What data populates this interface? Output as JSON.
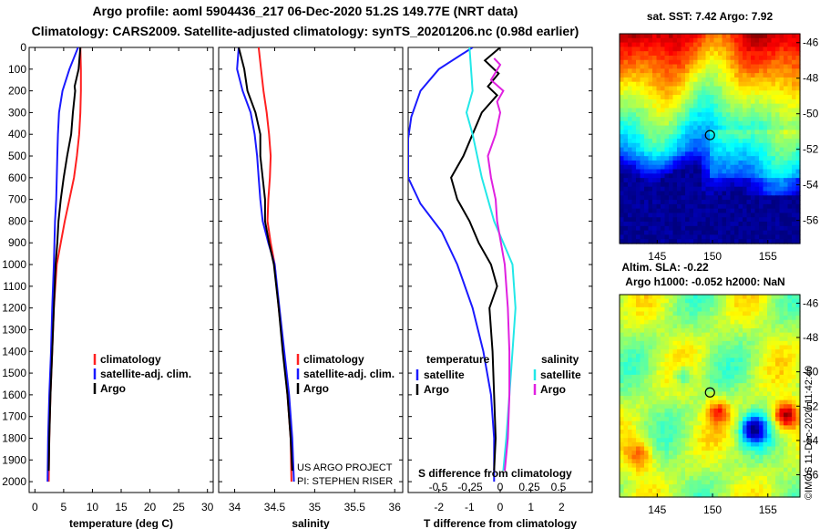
{
  "header": {
    "line1": "Argo profile: aoml 5904436_217 06-Dec-2020 51.2S 149.77E (NRT data)",
    "line2": "Climatology: CARS2009. Satellite-adjusted climatology: synTS_20201206.nc (0.98d earlier)"
  },
  "colors": {
    "climatology": "#ff2020",
    "satellite": "#1a1aff",
    "argo": "#000000",
    "sat_salinity": "#22e8e8",
    "argo_salinity": "#e020e0"
  },
  "chart_data": [
    {
      "type": "line",
      "id": "temperature",
      "xlabel": "temperature (deg C)",
      "xlim": [
        -1,
        31
      ],
      "xticks": [
        0,
        5,
        10,
        15,
        20,
        25,
        30
      ],
      "ylim": [
        2050,
        0
      ],
      "yticks": [
        0,
        100,
        200,
        300,
        400,
        500,
        600,
        700,
        800,
        900,
        1000,
        1100,
        1200,
        1300,
        1400,
        1500,
        1600,
        1700,
        1800,
        1900,
        2000
      ],
      "legend": [
        "climatology",
        "satellite-adj. clim.",
        "Argo"
      ],
      "series": [
        {
          "name": "climatology",
          "color": "#ff2020",
          "points": [
            [
              7.9,
              0
            ],
            [
              8.0,
              100
            ],
            [
              8.0,
              200
            ],
            [
              7.9,
              300
            ],
            [
              7.7,
              400
            ],
            [
              7.3,
              500
            ],
            [
              6.8,
              600
            ],
            [
              6.0,
              700
            ],
            [
              5.2,
              800
            ],
            [
              4.5,
              900
            ],
            [
              3.8,
              1000
            ],
            [
              3.3,
              1200
            ],
            [
              3.0,
              1400
            ],
            [
              2.7,
              1600
            ],
            [
              2.5,
              1800
            ],
            [
              2.4,
              2000
            ]
          ]
        },
        {
          "name": "satellite-adj. clim.",
          "color": "#1a1aff",
          "points": [
            [
              7.5,
              0
            ],
            [
              6.0,
              100
            ],
            [
              4.8,
              200
            ],
            [
              4.2,
              300
            ],
            [
              4.0,
              400
            ],
            [
              3.9,
              500
            ],
            [
              3.8,
              600
            ],
            [
              3.7,
              700
            ],
            [
              3.5,
              800
            ],
            [
              3.3,
              1000
            ],
            [
              3.0,
              1200
            ],
            [
              2.8,
              1400
            ],
            [
              2.5,
              1600
            ],
            [
              2.3,
              1800
            ],
            [
              2.2,
              2000
            ]
          ]
        },
        {
          "name": "Argo",
          "color": "#000000",
          "points": [
            [
              7.9,
              0
            ],
            [
              7.6,
              100
            ],
            [
              6.9,
              180
            ],
            [
              7.0,
              200
            ],
            [
              6.6,
              300
            ],
            [
              6.3,
              400
            ],
            [
              5.6,
              500
            ],
            [
              5.0,
              600
            ],
            [
              4.5,
              700
            ],
            [
              4.1,
              800
            ],
            [
              3.9,
              900
            ],
            [
              3.6,
              1000
            ],
            [
              3.3,
              1200
            ],
            [
              3.0,
              1400
            ],
            [
              2.7,
              1600
            ],
            [
              2.5,
              1800
            ],
            [
              2.4,
              1950
            ]
          ]
        }
      ]
    },
    {
      "type": "line",
      "id": "salinity",
      "xlabel": "salinity",
      "xlim": [
        33.8,
        36.1
      ],
      "xticks": [
        34,
        34.5,
        35,
        35.5,
        36
      ],
      "xticklabels": [
        "34",
        "34.5",
        "35",
        "35.5",
        "36"
      ],
      "ylim": [
        2050,
        0
      ],
      "legend": [
        "climatology",
        "satellite-adj. clim.",
        "Argo"
      ],
      "annotations": [
        "US ARGO PROJECT",
        "PI: STEPHEN RISER"
      ],
      "series": [
        {
          "name": "climatology",
          "color": "#ff2020",
          "points": [
            [
              34.3,
              0
            ],
            [
              34.33,
              100
            ],
            [
              34.36,
              200
            ],
            [
              34.4,
              300
            ],
            [
              34.43,
              400
            ],
            [
              34.45,
              500
            ],
            [
              34.44,
              600
            ],
            [
              34.42,
              700
            ],
            [
              34.41,
              800
            ],
            [
              34.45,
              900
            ],
            [
              34.5,
              1000
            ],
            [
              34.55,
              1200
            ],
            [
              34.61,
              1400
            ],
            [
              34.66,
              1600
            ],
            [
              34.7,
              1800
            ],
            [
              34.71,
              2000
            ]
          ]
        },
        {
          "name": "satellite-adj. clim.",
          "color": "#1a1aff",
          "points": [
            [
              34.05,
              0
            ],
            [
              34.03,
              100
            ],
            [
              34.1,
              200
            ],
            [
              34.2,
              300
            ],
            [
              34.25,
              400
            ],
            [
              34.28,
              500
            ],
            [
              34.3,
              600
            ],
            [
              34.32,
              700
            ],
            [
              34.35,
              800
            ],
            [
              34.42,
              900
            ],
            [
              34.5,
              1000
            ],
            [
              34.56,
              1200
            ],
            [
              34.62,
              1400
            ],
            [
              34.68,
              1600
            ],
            [
              34.72,
              1800
            ],
            [
              34.74,
              2000
            ]
          ]
        },
        {
          "name": "Argo",
          "color": "#000000",
          "points": [
            [
              34.05,
              0
            ],
            [
              34.12,
              100
            ],
            [
              34.16,
              200
            ],
            [
              34.26,
              300
            ],
            [
              34.32,
              400
            ],
            [
              34.32,
              500
            ],
            [
              34.35,
              600
            ],
            [
              34.38,
              700
            ],
            [
              34.38,
              800
            ],
            [
              34.43,
              900
            ],
            [
              34.49,
              1000
            ],
            [
              34.55,
              1200
            ],
            [
              34.6,
              1400
            ],
            [
              34.66,
              1600
            ],
            [
              34.7,
              1800
            ],
            [
              34.72,
              1950
            ]
          ]
        }
      ]
    },
    {
      "type": "line",
      "id": "difference",
      "xlabel": "T difference from climatology",
      "xlim": [
        -3,
        3
      ],
      "xticks": [
        -2,
        -1,
        0,
        1,
        2
      ],
      "xticklabels": [
        "-2",
        "-1",
        "0",
        "1",
        "2"
      ],
      "s_axis_label": "S difference from climatology",
      "s_ticks": [
        "-0.5",
        "-0.25",
        "0",
        "0.25",
        "0.5"
      ],
      "ylim": [
        2050,
        0
      ],
      "legend_temperature_title": "temperature",
      "legend_salinity_title": "salinity",
      "legend_temperature": [
        "satellite",
        "Argo"
      ],
      "legend_salinity": [
        "satellite",
        "Argo"
      ],
      "series": [
        {
          "name": "T satellite",
          "color": "#1a1aff",
          "points": [
            [
              -0.9,
              0
            ],
            [
              -2.0,
              100
            ],
            [
              -2.6,
              200
            ],
            [
              -2.9,
              320
            ],
            [
              -3.0,
              420
            ],
            [
              -3.0,
              600
            ],
            [
              -2.6,
              720
            ],
            [
              -1.9,
              850
            ],
            [
              -1.4,
              1000
            ],
            [
              -0.9,
              1200
            ],
            [
              -0.55,
              1400
            ],
            [
              -0.3,
              1600
            ],
            [
              -0.2,
              1800
            ],
            [
              -0.2,
              2000
            ]
          ]
        },
        {
          "name": "T Argo",
          "color": "#000000",
          "points": [
            [
              0.0,
              0
            ],
            [
              -0.5,
              60
            ],
            [
              -0.05,
              120
            ],
            [
              -0.4,
              180
            ],
            [
              -0.1,
              220
            ],
            [
              -0.6,
              300
            ],
            [
              -0.9,
              400
            ],
            [
              -1.2,
              500
            ],
            [
              -1.6,
              600
            ],
            [
              -1.4,
              700
            ],
            [
              -1.0,
              800
            ],
            [
              -0.7,
              900
            ],
            [
              -0.3,
              1000
            ],
            [
              -0.1,
              1100
            ],
            [
              -0.35,
              1200
            ],
            [
              -0.25,
              1400
            ],
            [
              -0.2,
              1600
            ],
            [
              -0.15,
              1800
            ],
            [
              -0.2,
              1950
            ]
          ]
        },
        {
          "name": "S satellite",
          "color": "#22e8e8",
          "points": [
            [
              -1.0,
              0
            ],
            [
              -0.9,
              200
            ],
            [
              -1.1,
              300
            ],
            [
              -0.9,
              400
            ],
            [
              -0.6,
              600
            ],
            [
              -0.2,
              800
            ],
            [
              0.4,
              1000
            ],
            [
              0.5,
              1200
            ],
            [
              0.4,
              1400
            ],
            [
              0.3,
              1600
            ],
            [
              0.2,
              1800
            ],
            [
              0.1,
              1950
            ]
          ]
        },
        {
          "name": "S Argo",
          "color": "#e020e0",
          "points": [
            [
              -0.2,
              50
            ],
            [
              0.0,
              80
            ],
            [
              -0.3,
              150
            ],
            [
              0.1,
              200
            ],
            [
              -0.1,
              250
            ],
            [
              0.0,
              300
            ],
            [
              -0.15,
              400
            ],
            [
              -0.4,
              500
            ],
            [
              -0.3,
              600
            ],
            [
              -0.15,
              700
            ],
            [
              -0.1,
              800
            ],
            [
              0.15,
              1000
            ],
            [
              0.25,
              1200
            ],
            [
              0.3,
              1400
            ],
            [
              0.3,
              1600
            ],
            [
              0.25,
              1800
            ],
            [
              0.15,
              1950
            ]
          ]
        }
      ]
    },
    {
      "type": "heatmap",
      "id": "sst_map",
      "title": "sat. SST: 7.42 Argo: 7.92",
      "xticks": [
        "145",
        "150",
        "155"
      ],
      "yticks": [
        "-46",
        "-48",
        "-50",
        "-52",
        "-54",
        "-56"
      ],
      "marker": {
        "lon": 149.77,
        "lat": -51.2
      }
    },
    {
      "type": "heatmap",
      "id": "sla_map",
      "title1": "Altim. SLA: -0.22",
      "title2": "Argo h1000: -0.052 h2000: NaN",
      "xticks": [
        "145",
        "150",
        "155"
      ],
      "yticks": [
        "-46",
        "-48",
        "-50",
        "-52",
        "-54",
        "-56"
      ],
      "marker": {
        "lon": 149.77,
        "lat": -51.2
      },
      "credit": "©IMOS 11-Dec-2020 11:42:40"
    }
  ]
}
